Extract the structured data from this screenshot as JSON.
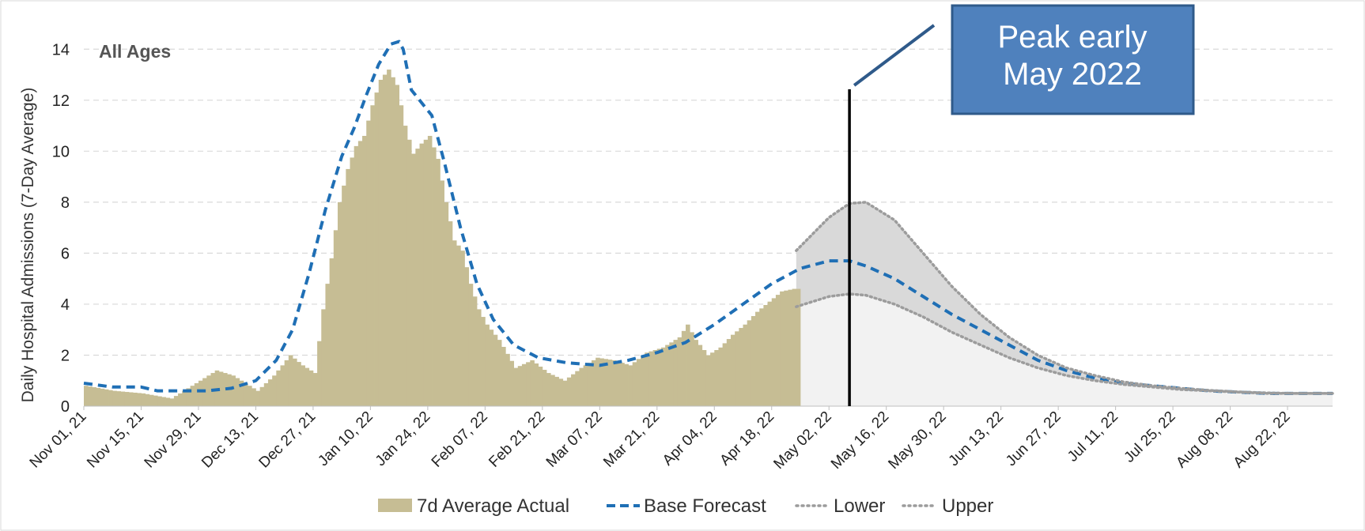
{
  "chart_data": {
    "type": "bar",
    "subtitle": "All Ages",
    "ylabel": "Daily Hospital Admissions (7-Day Average)",
    "ylim": [
      0,
      15
    ],
    "yticks": [
      0,
      2,
      4,
      6,
      8,
      10,
      12,
      14
    ],
    "grid": true,
    "x_start": "2021-11-01",
    "x_end": "2022-09-02",
    "x_tick_labels": [
      "Nov 01, 21",
      "Nov 15, 21",
      "Nov 29, 21",
      "Dec 13, 21",
      "Dec 27, 21",
      "Jan 10, 22",
      "Jan 24, 22",
      "Feb 07, 22",
      "Feb 21, 22",
      "Mar 07, 22",
      "Mar 21, 22",
      "Apr 04, 22",
      "Apr 18, 22",
      "May 02, 22",
      "May 16, 22",
      "May 30, 22",
      "Jun 13, 22",
      "Jun 27, 22",
      "Jul 11, 22",
      "Jul 25, 22",
      "Aug 08, 22",
      "Aug 22, 22"
    ],
    "colors": {
      "actual": "#c6bd94",
      "base": "#1f6fb5",
      "bounds": "#9c9c9c",
      "band": "#d9d9d9",
      "band_lower": "#f2f2f2",
      "callout_fill": "#4f81bd",
      "callout_border": "#2f5a8a"
    },
    "actual_series": {
      "name": "7d Average Actual",
      "x": [
        "2021-11-01",
        "2021-11-08",
        "2021-11-15",
        "2021-11-22",
        "2021-11-29",
        "2021-12-03",
        "2021-12-07",
        "2021-12-13",
        "2021-12-17",
        "2021-12-21",
        "2021-12-24",
        "2021-12-27",
        "2021-12-29",
        "2021-12-31",
        "2022-01-02",
        "2022-01-04",
        "2022-01-06",
        "2022-01-08",
        "2022-01-10",
        "2022-01-12",
        "2022-01-14",
        "2022-01-16",
        "2022-01-18",
        "2022-01-20",
        "2022-01-22",
        "2022-01-24",
        "2022-01-26",
        "2022-01-28",
        "2022-01-30",
        "2022-02-01",
        "2022-02-03",
        "2022-02-05",
        "2022-02-07",
        "2022-02-10",
        "2022-02-14",
        "2022-02-18",
        "2022-02-22",
        "2022-02-26",
        "2022-03-02",
        "2022-03-06",
        "2022-03-10",
        "2022-03-14",
        "2022-03-18",
        "2022-03-22",
        "2022-03-26",
        "2022-03-28",
        "2022-03-30",
        "2022-04-02",
        "2022-04-05",
        "2022-04-08",
        "2022-04-11",
        "2022-04-14",
        "2022-04-17",
        "2022-04-20",
        "2022-04-23",
        "2022-04-24"
      ],
      "values": [
        0.8,
        0.6,
        0.5,
        0.3,
        1.0,
        1.4,
        1.2,
        0.6,
        1.2,
        2.0,
        1.6,
        1.3,
        3.8,
        5.8,
        8.0,
        9.3,
        10.2,
        10.6,
        11.8,
        12.8,
        13.2,
        12.6,
        11.0,
        9.9,
        10.3,
        10.6,
        9.7,
        8.0,
        6.5,
        6.1,
        4.8,
        3.8,
        3.2,
        2.6,
        1.5,
        1.8,
        1.3,
        1.0,
        1.5,
        1.9,
        1.8,
        1.6,
        2.1,
        2.3,
        2.7,
        3.2,
        2.6,
        2.0,
        2.3,
        2.8,
        3.2,
        3.7,
        4.1,
        4.5,
        4.6,
        4.6
      ]
    },
    "forecast_series": [
      {
        "name": "Base Forecast",
        "x": [
          "2021-11-01",
          "2021-11-08",
          "2021-11-15",
          "2021-11-19",
          "2021-11-25",
          "2021-12-01",
          "2021-12-07",
          "2021-12-13",
          "2021-12-18",
          "2021-12-22",
          "2021-12-26",
          "2021-12-30",
          "2022-01-03",
          "2022-01-06",
          "2022-01-09",
          "2022-01-12",
          "2022-01-15",
          "2022-01-17",
          "2022-01-18",
          "2022-01-20",
          "2022-01-22",
          "2022-01-25",
          "2022-01-28",
          "2022-02-01",
          "2022-02-05",
          "2022-02-09",
          "2022-02-14",
          "2022-02-20",
          "2022-02-27",
          "2022-03-07",
          "2022-03-14",
          "2022-03-21",
          "2022-03-28",
          "2022-04-04",
          "2022-04-11",
          "2022-04-18",
          "2022-04-25",
          "2022-05-02",
          "2022-05-07",
          "2022-05-11",
          "2022-05-18",
          "2022-05-25",
          "2022-06-01",
          "2022-06-08",
          "2022-06-15",
          "2022-06-22",
          "2022-06-29",
          "2022-07-06",
          "2022-07-13",
          "2022-07-20",
          "2022-07-27",
          "2022-08-03",
          "2022-08-10",
          "2022-08-17",
          "2022-08-24",
          "2022-08-31",
          "2022-09-02"
        ],
        "values": [
          0.9,
          0.75,
          0.75,
          0.6,
          0.6,
          0.6,
          0.7,
          1.0,
          1.8,
          3.0,
          5.2,
          7.7,
          9.8,
          10.9,
          12.2,
          13.4,
          14.2,
          14.3,
          14.0,
          12.4,
          12.0,
          11.4,
          9.6,
          7.0,
          4.8,
          3.4,
          2.4,
          1.9,
          1.7,
          1.6,
          1.8,
          2.1,
          2.5,
          3.2,
          4.0,
          4.8,
          5.4,
          5.7,
          5.7,
          5.5,
          5.0,
          4.3,
          3.6,
          3.0,
          2.4,
          1.8,
          1.4,
          1.1,
          0.9,
          0.8,
          0.7,
          0.6,
          0.55,
          0.5,
          0.5,
          0.5,
          0.5
        ]
      },
      {
        "name": "Lower",
        "x": [
          "2022-04-24",
          "2022-05-02",
          "2022-05-07",
          "2022-05-11",
          "2022-05-18",
          "2022-05-25",
          "2022-06-01",
          "2022-06-08",
          "2022-06-15",
          "2022-06-22",
          "2022-06-29",
          "2022-07-06",
          "2022-07-13",
          "2022-07-20",
          "2022-07-27",
          "2022-08-03",
          "2022-08-10",
          "2022-08-17",
          "2022-08-24",
          "2022-08-31",
          "2022-09-02"
        ],
        "values": [
          3.9,
          4.3,
          4.4,
          4.35,
          4.0,
          3.5,
          2.9,
          2.4,
          1.9,
          1.5,
          1.2,
          1.0,
          0.85,
          0.75,
          0.65,
          0.6,
          0.55,
          0.5,
          0.5,
          0.5,
          0.5
        ]
      },
      {
        "name": "Upper",
        "x": [
          "2022-04-24",
          "2022-05-02",
          "2022-05-07",
          "2022-05-11",
          "2022-05-18",
          "2022-05-25",
          "2022-06-01",
          "2022-06-08",
          "2022-06-15",
          "2022-06-22",
          "2022-06-29",
          "2022-07-06",
          "2022-07-13",
          "2022-07-20",
          "2022-07-27",
          "2022-08-03",
          "2022-08-10",
          "2022-08-17",
          "2022-08-24",
          "2022-08-31",
          "2022-09-02"
        ],
        "values": [
          6.1,
          7.4,
          7.95,
          8.0,
          7.3,
          6.0,
          4.7,
          3.6,
          2.7,
          2.0,
          1.5,
          1.2,
          0.95,
          0.8,
          0.7,
          0.62,
          0.56,
          0.52,
          0.5,
          0.5,
          0.5
        ]
      }
    ],
    "peak_marker_x": "2022-05-07",
    "annotation": {
      "text_lines": [
        "Peak early",
        "May 2022"
      ]
    },
    "legend": {
      "placement": "bottom",
      "items": [
        {
          "label": "7d Average Actual",
          "style": "bar"
        },
        {
          "label": "Base Forecast",
          "style": "dashed"
        },
        {
          "label": "Lower",
          "style": "dotted"
        },
        {
          "label": "Upper",
          "style": "dotted"
        }
      ]
    }
  }
}
